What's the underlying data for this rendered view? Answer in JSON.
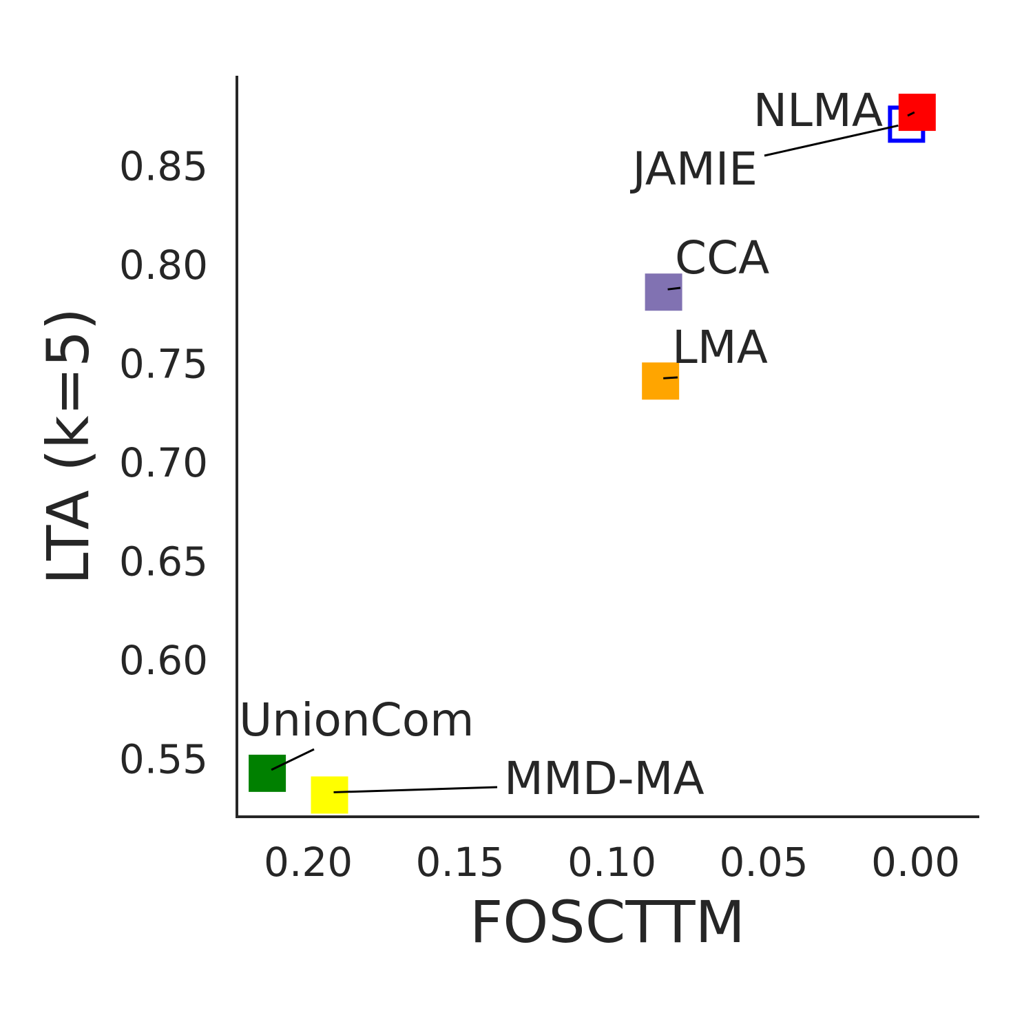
{
  "chart_data": {
    "type": "scatter",
    "title": "",
    "xlabel": "FOSCTTM",
    "ylabel": "LTA (k=5)",
    "x_inverted": true,
    "xlim": [
      0.2235,
      -0.0205
    ],
    "ylim": [
      0.5205,
      0.8955
    ],
    "xticks": [
      0.2,
      0.15,
      0.1,
      0.05,
      0.0
    ],
    "xtick_labels": [
      "0.20",
      "0.15",
      "0.10",
      "0.05",
      "0.00"
    ],
    "yticks": [
      0.55,
      0.6,
      0.65,
      0.7,
      0.75,
      0.8,
      0.85
    ],
    "ytick_labels": [
      "0.55",
      "0.60",
      "0.65",
      "0.70",
      "0.75",
      "0.80",
      "0.85"
    ],
    "grid": false,
    "marker": "square",
    "points": [
      {
        "label": "JAMIE",
        "x": 0.003,
        "y": 0.871,
        "color": "#0000ff"
      },
      {
        "label": "NLMA",
        "x": -0.0005,
        "y": 0.877,
        "color": "#ff0000"
      },
      {
        "label": "CCA",
        "x": 0.083,
        "y": 0.786,
        "color": "#8172b2"
      },
      {
        "label": "LMA",
        "x": 0.084,
        "y": 0.741,
        "color": "#ffa500"
      },
      {
        "label": "UnionCom",
        "x": 0.2135,
        "y": 0.5425,
        "color": "#008000"
      },
      {
        "label": "MMD-MA",
        "x": 0.193,
        "y": 0.5315,
        "color": "#ffff00"
      }
    ]
  }
}
